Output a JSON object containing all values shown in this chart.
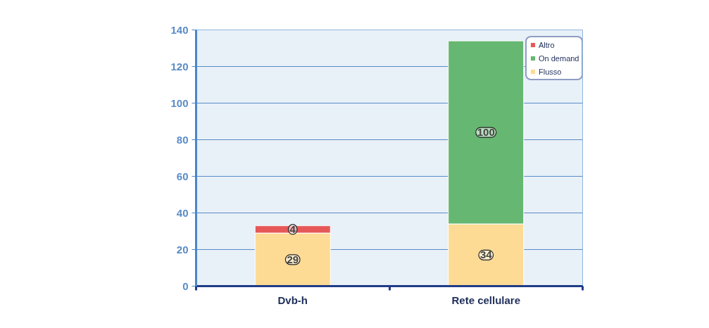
{
  "chart_data": {
    "type": "bar",
    "stacked": true,
    "categories": [
      "Dvb-h",
      "Rete cellulare"
    ],
    "series": [
      {
        "name": "Flusso",
        "color": "#fddb95",
        "values": [
          29,
          34
        ],
        "value_labels": [
          "29",
          "34"
        ]
      },
      {
        "name": "On demand",
        "color": "#66b771",
        "values": [
          null,
          100
        ],
        "value_labels": [
          null,
          "100"
        ]
      },
      {
        "name": "Altro",
        "color": "#e65858",
        "values": [
          4,
          null
        ],
        "value_labels": [
          "4",
          null
        ]
      }
    ],
    "ylim": [
      0,
      140
    ],
    "yticks": [
      0,
      20,
      40,
      60,
      80,
      100,
      120,
      140
    ],
    "grid": "y",
    "legend": "top right"
  }
}
